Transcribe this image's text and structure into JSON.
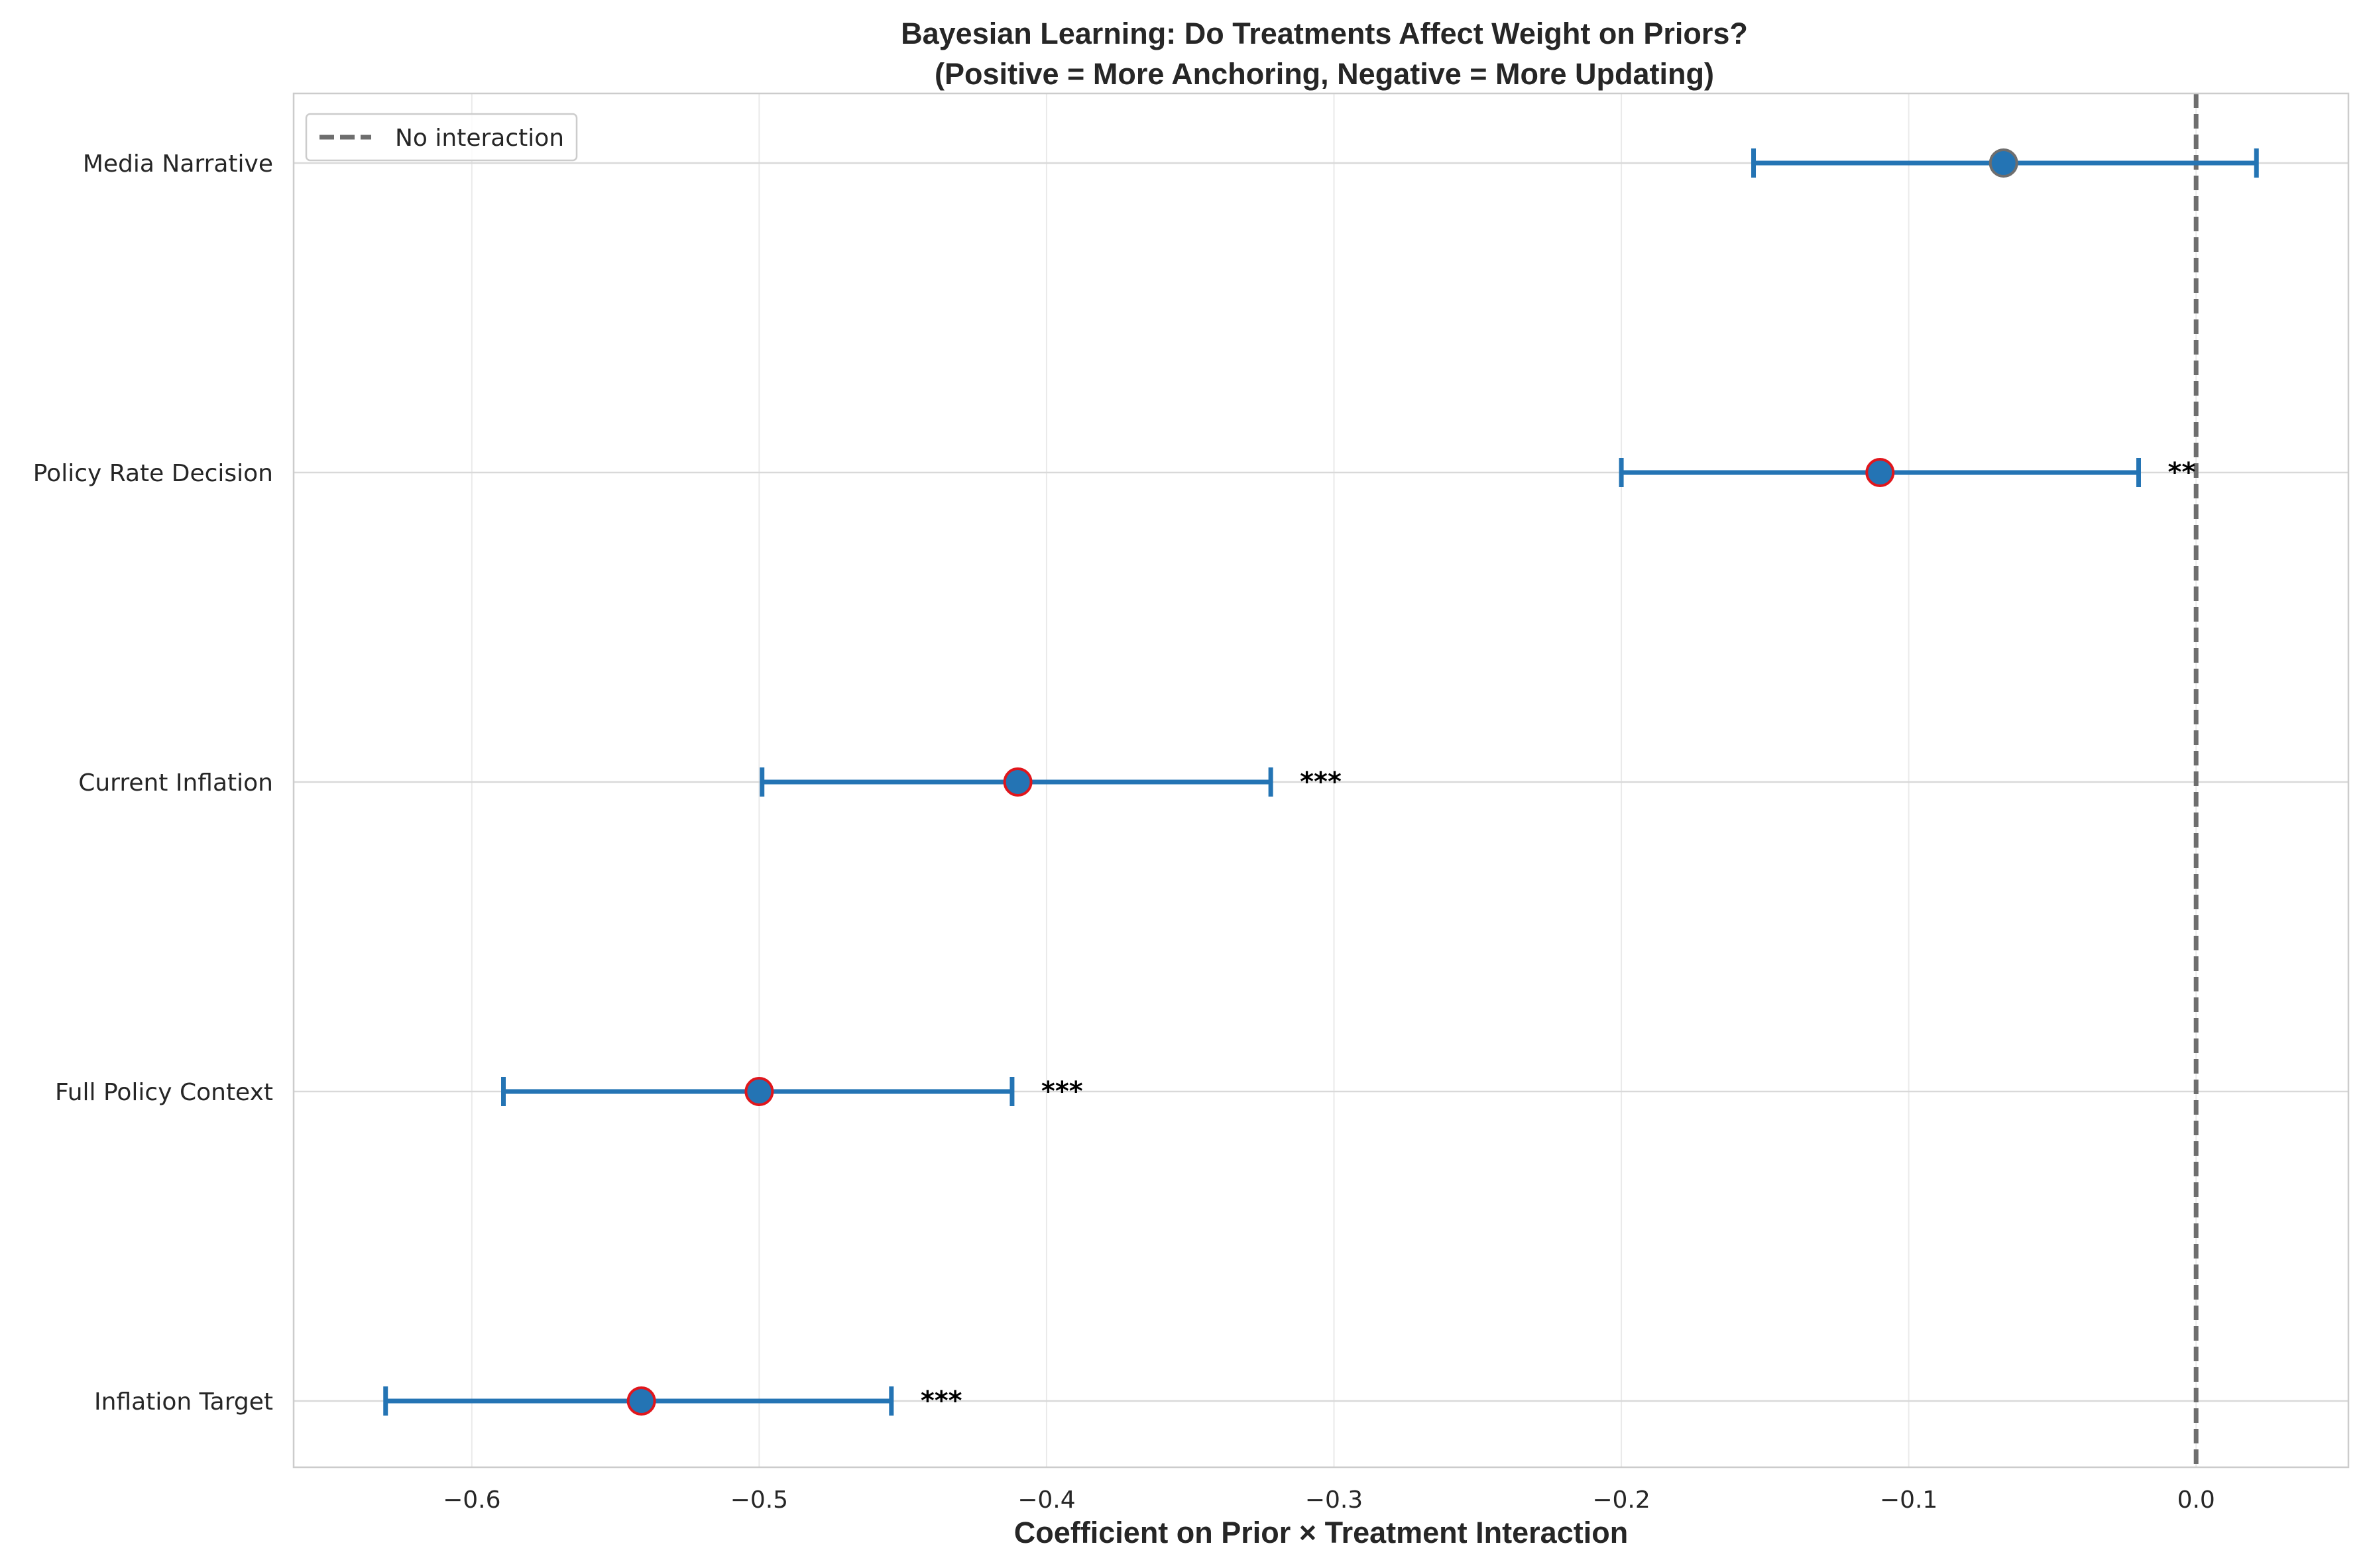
{
  "chart_data": {
    "type": "scatter",
    "subtype": "coefficient-plot-horizontal-error-bars",
    "title_line1": "Bayesian Learning: Do Treatments Affect Weight on Priors?",
    "title_line2": "(Positive = More Anchoring, Negative = More Updating)",
    "xlabel": "Coefficient on Prior × Treatment Interaction",
    "ylabel": "",
    "xlim": [
      -0.662,
      0.053
    ],
    "xticks": [
      -0.6,
      -0.5,
      -0.4,
      -0.3,
      -0.2,
      -0.1,
      0.0
    ],
    "xtick_labels": [
      "−0.6",
      "−0.5",
      "−0.4",
      "−0.3",
      "−0.2",
      "−0.1",
      "0.0"
    ],
    "grid": true,
    "legend": {
      "placement": "top-left",
      "entries": [
        "No interaction"
      ]
    },
    "reference_line": {
      "x": 0.0,
      "label": "No interaction",
      "style": "dashed",
      "color": "#6e6e6e"
    },
    "points": [
      {
        "label": "Media Narrative",
        "coef": -0.067,
        "ci_low": -0.154,
        "ci_high": 0.021,
        "significance": "",
        "significant": false
      },
      {
        "label": "Policy Rate Decision",
        "coef": -0.11,
        "ci_low": -0.2,
        "ci_high": -0.02,
        "significance": "**",
        "significant": true
      },
      {
        "label": "Current Inflation",
        "coef": -0.41,
        "ci_low": -0.499,
        "ci_high": -0.322,
        "significance": "***",
        "significant": true
      },
      {
        "label": "Full Policy Context",
        "coef": -0.5,
        "ci_low": -0.589,
        "ci_high": -0.412,
        "significance": "***",
        "significant": true
      },
      {
        "label": "Inflation Target",
        "coef": -0.541,
        "ci_low": -0.63,
        "ci_high": -0.454,
        "significance": "***",
        "significant": true
      }
    ],
    "colors": {
      "errorbar": "#2474b4",
      "marker_fill": "#2474b4",
      "marker_edge_significant": "#e0161c",
      "marker_edge_not_significant": "#6e6e6e",
      "reference_line": "#6e6e6e",
      "grid": "#d9d9d9",
      "frame": "#cccccc"
    }
  }
}
